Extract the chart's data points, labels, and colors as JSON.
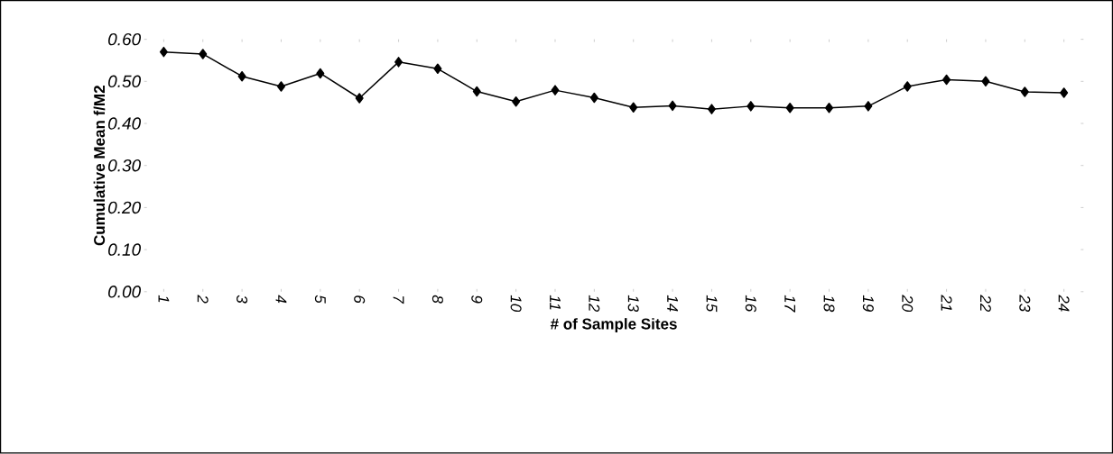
{
  "chart_data": {
    "type": "line",
    "xlabel": "# of Sample Sites",
    "ylabel": "Cumulative Mean f/M2",
    "categories": [
      "1",
      "2",
      "3",
      "4",
      "5",
      "6",
      "7",
      "8",
      "9",
      "10",
      "11",
      "12",
      "13",
      "14",
      "15",
      "16",
      "17",
      "18",
      "19",
      "20",
      "21",
      "22",
      "23",
      "24"
    ],
    "values": [
      0.57,
      0.565,
      0.512,
      0.488,
      0.519,
      0.46,
      0.546,
      0.53,
      0.476,
      0.452,
      0.479,
      0.461,
      0.438,
      0.442,
      0.434,
      0.441,
      0.437,
      0.437,
      0.441,
      0.488,
      0.504,
      0.5,
      0.475,
      0.473
    ],
    "color": "#000000",
    "marker": "diamond",
    "line_style": "solid",
    "ylim": [
      0,
      0.6
    ],
    "yticks": [
      {
        "value": 0,
        "label": "0.00"
      },
      {
        "value": 0.1,
        "label": "0.10"
      },
      {
        "value": 0.2,
        "label": "0.20"
      },
      {
        "value": 0.3,
        "label": "0.30"
      },
      {
        "value": 0.4,
        "label": "0.40"
      },
      {
        "value": 0.5,
        "label": "0.50"
      },
      {
        "value": 0.6,
        "label": "0.60"
      }
    ]
  }
}
